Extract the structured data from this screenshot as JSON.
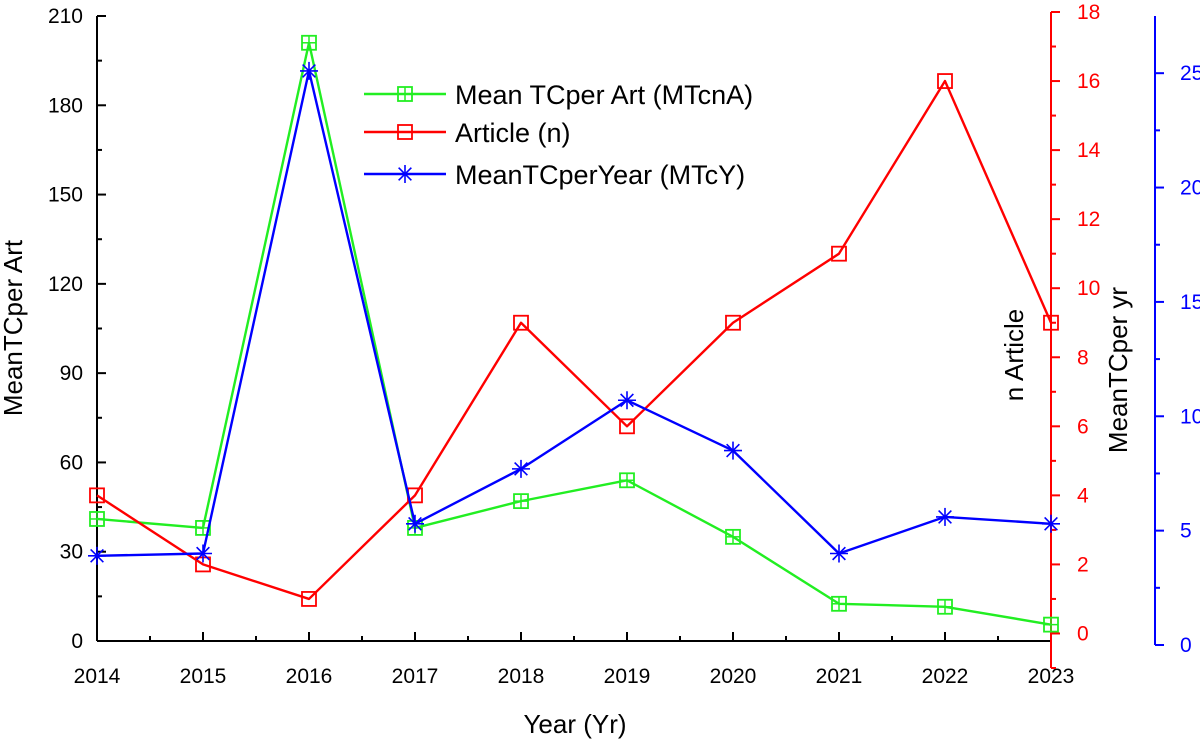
{
  "chart_data": {
    "type": "line",
    "x": [
      2014,
      2015,
      2016,
      2017,
      2018,
      2019,
      2020,
      2021,
      2022,
      2023
    ],
    "xlabel": "Year (Yr)",
    "xlim": [
      2014,
      2023
    ],
    "axes": {
      "left": {
        "label": "MeanTCper Art",
        "ylim": [
          0,
          210
        ],
        "ticks": [
          0,
          30,
          60,
          90,
          120,
          150,
          180,
          210
        ],
        "color": "#000000"
      },
      "right1": {
        "label": "n Article",
        "ylim": [
          -1,
          18
        ],
        "ticks": [
          0,
          2,
          4,
          6,
          8,
          10,
          12,
          14,
          16,
          18
        ],
        "color": "#ff0000"
      },
      "right2": {
        "label": "MeanTCper yr",
        "ylim": [
          0,
          27.5
        ],
        "ticks": [
          0,
          5,
          10,
          15,
          20,
          25
        ],
        "color": "#0000ff"
      }
    },
    "series": [
      {
        "name": "Mean TCper Art (MTcnA)",
        "axis": "left",
        "color": "#22ee22",
        "marker": "square-plus",
        "values": [
          41,
          38,
          201,
          38,
          47,
          54,
          35,
          12.5,
          11.5,
          5.5
        ]
      },
      {
        "name": "Article (n)",
        "axis": "right1",
        "color": "#ff0000",
        "marker": "square",
        "values": [
          4,
          2,
          1,
          4,
          9,
          6,
          9,
          11,
          16,
          9
        ]
      },
      {
        "name": "MeanTCperYear (MTcY)",
        "axis": "right2",
        "color": "#0000ff",
        "marker": "asterisk",
        "values": [
          3.9,
          4.0,
          25.1,
          5.3,
          7.7,
          10.7,
          8.5,
          4.0,
          5.6,
          5.3
        ]
      }
    ],
    "legend": "top-center",
    "grid": false
  }
}
